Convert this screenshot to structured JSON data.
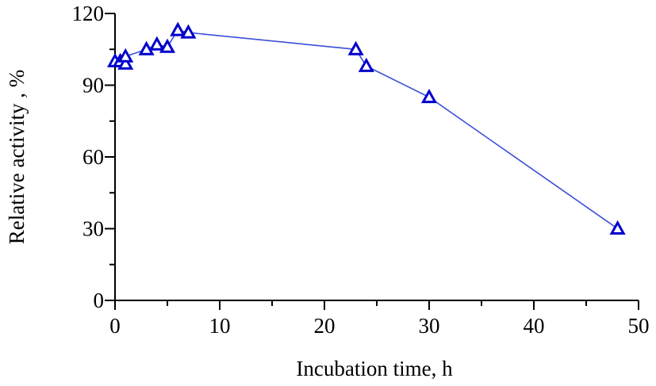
{
  "chart_data": {
    "type": "line",
    "xlabel": "Incubation time, h",
    "ylabel": "Relative activity , %",
    "xlim": [
      0,
      50
    ],
    "ylim": [
      0,
      120
    ],
    "xticks": [
      0,
      10,
      20,
      30,
      40,
      50
    ],
    "yticks": [
      0,
      30,
      60,
      90,
      120
    ],
    "grid": false,
    "legend": "none",
    "series": [
      {
        "marker": "triangle-open",
        "color": "#0000cc",
        "line_color": "#3b4fd8",
        "x": [
          0,
          0.5,
          1,
          1,
          3,
          4,
          5,
          6,
          7,
          23,
          24,
          30,
          48
        ],
        "y": [
          100,
          100,
          99,
          102,
          105,
          107,
          106,
          113,
          112,
          105,
          98,
          85,
          30
        ]
      }
    ]
  }
}
